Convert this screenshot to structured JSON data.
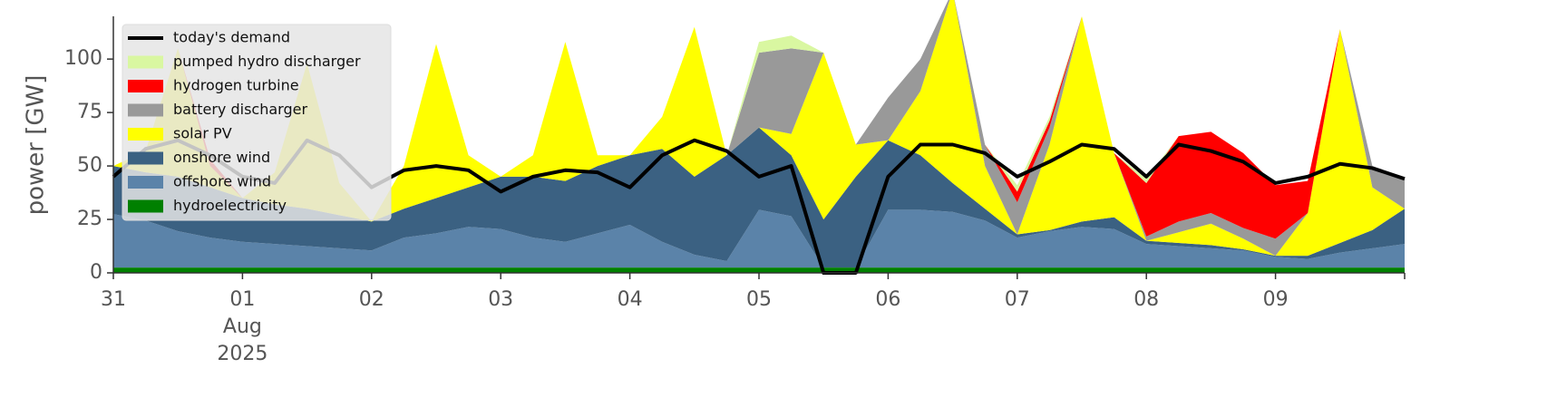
{
  "chart_data": {
    "type": "stacked-area",
    "ylabel": "power [GW]",
    "x": [
      0,
      0.25,
      0.5,
      0.75,
      1,
      1.25,
      1.5,
      1.75,
      2,
      2.25,
      2.5,
      2.75,
      3,
      3.25,
      3.5,
      3.75,
      4,
      4.25,
      4.5,
      4.75,
      5,
      5.25,
      5.5,
      5.75,
      6,
      6.25,
      6.5,
      6.75,
      7,
      7.25,
      7.5,
      7.75,
      8,
      8.25,
      8.5,
      8.75,
      9,
      9.25,
      9.5,
      9.75,
      10
    ],
    "xlim": [
      0,
      10
    ],
    "xticks": [
      {
        "value": 0,
        "label": "31"
      },
      {
        "value": 1,
        "label": "01\nAug\n2025"
      },
      {
        "value": 2,
        "label": "02"
      },
      {
        "value": 3,
        "label": "03"
      },
      {
        "value": 4,
        "label": "04"
      },
      {
        "value": 5,
        "label": "05"
      },
      {
        "value": 6,
        "label": "06"
      },
      {
        "value": 7,
        "label": "07"
      },
      {
        "value": 8,
        "label": "08"
      },
      {
        "value": 9,
        "label": "09"
      }
    ],
    "ylim": [
      0,
      120
    ],
    "yticks": [
      0,
      25,
      50,
      75,
      100
    ],
    "grid": false,
    "legend": "upper left",
    "line": {
      "name": "today's demand",
      "color": "#000000",
      "values": [
        45,
        58,
        62,
        55,
        45,
        42,
        62,
        55,
        40,
        48,
        50,
        48,
        38,
        45,
        48,
        47,
        40,
        55,
        62,
        57,
        45,
        50,
        0,
        0,
        45,
        60,
        60,
        56,
        45,
        52,
        60,
        58,
        45,
        60,
        57,
        52,
        42,
        45,
        51,
        49,
        44
      ]
    },
    "series": [
      {
        "name": "hydroelectricity",
        "color": "#008000",
        "values": [
          2.5,
          2.5,
          2.5,
          2.5,
          2.5,
          2.5,
          2.5,
          2.5,
          2.5,
          2.5,
          2.5,
          2.5,
          2.5,
          2.5,
          2.5,
          2.5,
          2.5,
          2.5,
          2.5,
          2.5,
          2.5,
          2.5,
          2.5,
          2.5,
          2.5,
          2.5,
          2.5,
          2.5,
          2.5,
          2.5,
          2.5,
          2.5,
          2.5,
          2.5,
          2.5,
          2.5,
          2.5,
          2.5,
          2.5,
          2.5,
          2.5
        ]
      },
      {
        "name": "offshore wind",
        "color": "#5b83a9",
        "values": [
          25,
          22,
          17,
          14,
          12,
          11,
          10,
          9,
          8,
          14,
          16,
          19,
          18,
          14,
          12,
          16,
          20,
          12,
          6,
          3,
          27,
          24,
          0,
          0,
          27,
          27,
          26,
          22,
          14,
          17,
          19,
          18,
          11,
          10,
          9,
          8,
          5,
          4,
          7,
          9,
          11
        ]
      },
      {
        "name": "onshore wind",
        "color": "#3b6182",
        "values": [
          22.5,
          22.5,
          25.5,
          23.5,
          20.5,
          18.5,
          17.5,
          15.5,
          13.5,
          13.5,
          16.5,
          18.5,
          24.5,
          28.5,
          28.5,
          31.5,
          32.5,
          43.5,
          36.5,
          49.5,
          38.5,
          28.5,
          22.5,
          42.5,
          32.5,
          25.5,
          13.5,
          5.5,
          1.5,
          0.5,
          2.5,
          5.5,
          1.5,
          1.5,
          1.5,
          0.5,
          0.5,
          1.5,
          4.5,
          8.5,
          16.5
        ]
      },
      {
        "name": "solar PV",
        "color": "#ffff00",
        "values": [
          0,
          10,
          60,
          10,
          0,
          15,
          68,
          15,
          0,
          20,
          72,
          15,
          0,
          10,
          65,
          5,
          0,
          15,
          70,
          0,
          0,
          10,
          78,
          15,
          0,
          30,
          90,
          20,
          0,
          40,
          96,
          30,
          0,
          5,
          10,
          5,
          0,
          20,
          100,
          20,
          0
        ]
      },
      {
        "name": "battery discharger",
        "color": "#999999",
        "values": [
          0,
          0,
          0,
          0,
          0,
          0,
          0,
          0,
          0,
          0,
          0,
          0,
          0,
          0,
          0,
          0,
          0,
          0,
          0,
          0,
          35,
          40,
          0,
          0,
          20,
          15,
          0,
          10,
          15,
          8,
          0,
          0,
          2,
          5,
          5,
          5,
          8,
          0,
          0,
          10,
          14
        ]
      },
      {
        "name": "hydrogen turbine",
        "color": "#ff0000",
        "values": [
          0,
          0,
          0,
          3,
          0,
          0,
          0,
          0,
          0,
          0,
          0,
          0,
          0,
          0,
          0,
          0,
          0,
          0,
          0,
          0,
          0,
          0,
          0,
          0,
          0,
          0,
          0,
          0,
          5,
          3,
          0,
          0,
          25,
          40,
          38,
          35,
          25,
          15,
          0,
          0,
          0
        ]
      },
      {
        "name": "pumped hydro discharger",
        "color": "#d9f7a1",
        "values": [
          0,
          0,
          0,
          0,
          0,
          0,
          0,
          0,
          0,
          0,
          0,
          0,
          0,
          0,
          0,
          0,
          0,
          0,
          0,
          0,
          5,
          6,
          0,
          0,
          0,
          0,
          0,
          0,
          3,
          2,
          0,
          0,
          2,
          0,
          0,
          0,
          0,
          0,
          0,
          0,
          0
        ]
      }
    ]
  }
}
